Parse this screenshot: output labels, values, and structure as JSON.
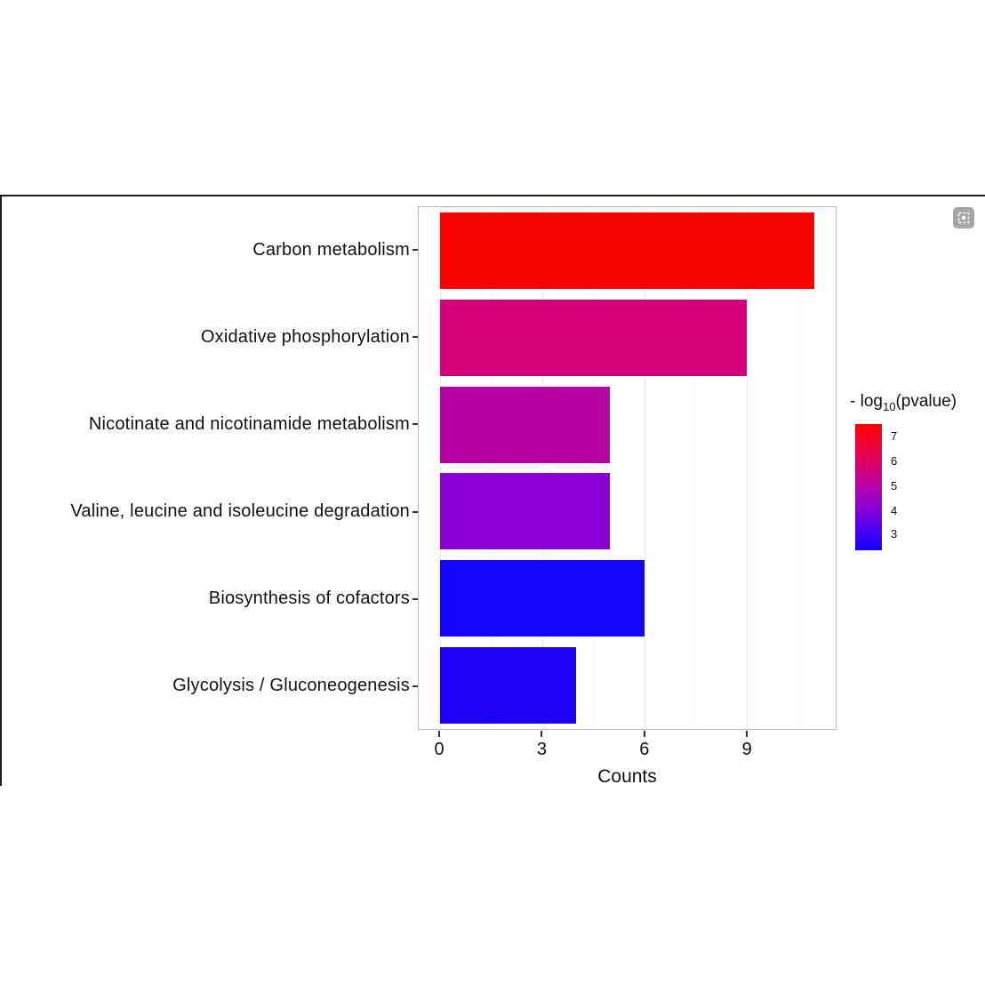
{
  "toolbar": {
    "screenshot_icon": "screenshot-icon"
  },
  "chart_data": {
    "type": "bar",
    "orientation": "horizontal",
    "title": "",
    "xlabel": "Counts",
    "ylabel": "",
    "categories": [
      "Carbon metabolism",
      "Oxidative phosphorylation",
      "Nicotinate and nicotinamide metabolism",
      "Valine, leucine and isoleucine degradation",
      "Biosynthesis of cofactors",
      "Glycolysis / Gluconeogenesis"
    ],
    "values": [
      11,
      9,
      5,
      5,
      6,
      4
    ],
    "bar_colors": [
      "#f80400",
      "#d40077",
      "#b701a3",
      "#8a00d3",
      "#1303fb",
      "#1d01f6"
    ],
    "xticks": [
      "0",
      "3",
      "6",
      "9"
    ],
    "xlim": [
      -0.55,
      11.55
    ],
    "grid": true,
    "legend_position": "right",
    "legend": {
      "title_prefix": "- log",
      "title_sub": "10",
      "title_suffix": "(pvalue)",
      "ticks": [
        "7",
        "6",
        "5",
        "4",
        "3"
      ],
      "gradient": [
        "#ff0000",
        "#ee0035",
        "#d6006f",
        "#b400ac",
        "#8b00d4",
        "#4a00f2",
        "#1200ff"
      ]
    }
  }
}
